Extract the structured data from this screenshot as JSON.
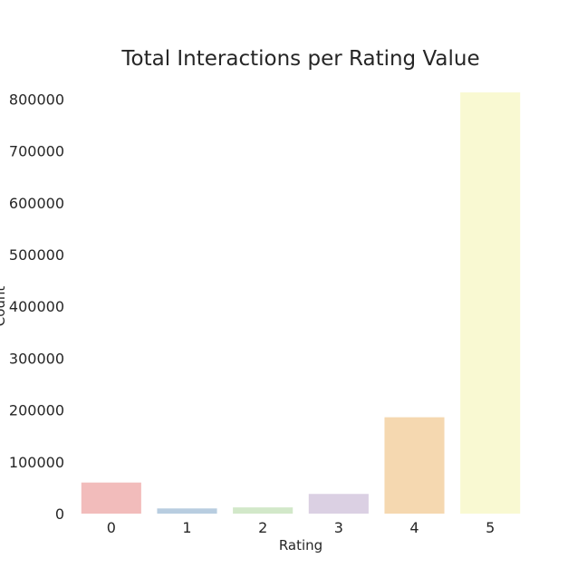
{
  "chart_data": {
    "type": "bar",
    "title": "Total Interactions per Rating Value",
    "xlabel": "Rating",
    "ylabel": "Count",
    "categories": [
      "0",
      "1",
      "2",
      "3",
      "4",
      "5"
    ],
    "values": [
      60000,
      10000,
      12000,
      38000,
      186000,
      813000
    ],
    "ylim": [
      0,
      813000
    ],
    "yticks": [
      0,
      100000,
      200000,
      300000,
      400000,
      500000,
      600000,
      700000,
      800000
    ],
    "ytick_labels": [
      "0",
      "100000",
      "200000",
      "300000",
      "400000",
      "500000",
      "600000",
      "700000",
      "800000"
    ],
    "colors": [
      "#f2bcbb",
      "#b8cde0",
      "#d2e8c9",
      "#dbd0e3",
      "#f5d8b0",
      "#f9f9d2"
    ],
    "grid": false
  }
}
